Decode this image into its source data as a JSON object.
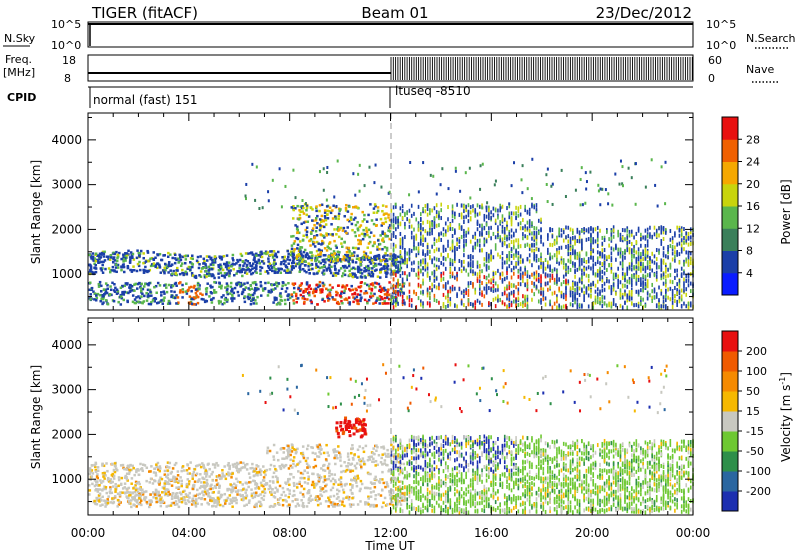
{
  "header": {
    "station": "TIGER (fitACF)",
    "beam": "Beam 01",
    "date": "23/Dec/2012"
  },
  "panels": {
    "nsky": {
      "left_label": "N.Sky",
      "right_label": "N.Search",
      "left_ticks": [
        "10^5",
        "10^0"
      ],
      "right_ticks": [
        "10^5",
        "10^0"
      ]
    },
    "freq": {
      "left_label_line1": "Freq.",
      "left_label_line2": "[MHz]",
      "right_label": "Nave",
      "left_ticks": [
        "18",
        "8"
      ],
      "right_ticks": [
        "60",
        "0"
      ]
    },
    "cpid": {
      "label": "CPID",
      "segments": [
        {
          "name": "normal (fast) 151",
          "start_h": 0
        },
        {
          "name": "ltuseq -8510",
          "start_h": 12
        }
      ]
    }
  },
  "chart_data": [
    {
      "type": "heatmap",
      "name": "power",
      "ylabel": "Slant Range [km]",
      "yticks": [
        "1000",
        "2000",
        "3000",
        "4000"
      ],
      "ylim": [
        200,
        4600
      ],
      "colorbar_label": "Power [dB]",
      "colorbar_ticks": [
        "4",
        "8",
        "12",
        "16",
        "20",
        "24",
        "28"
      ],
      "colorbar_colors": [
        "#0a1cff",
        "#1b3fa8",
        "#3a7f5a",
        "#5ab64c",
        "#c8d40c",
        "#f5a800",
        "#f06000",
        "#e81010"
      ]
    },
    {
      "type": "heatmap",
      "name": "velocity",
      "ylabel": "Slant Range [km]",
      "yticks": [
        "1000",
        "2000",
        "3000",
        "4000"
      ],
      "ylim": [
        200,
        4600
      ],
      "xlabel": "Time UT",
      "xticks": [
        "00:00",
        "04:00",
        "08:00",
        "12:00",
        "16:00",
        "20:00",
        "00:00"
      ],
      "colorbar_label": "Velocity [m s",
      "colorbar_label_sup": "-1",
      "colorbar_label_end": "]",
      "colorbar_ticks": [
        "200",
        "100",
        "50",
        "15",
        "-15",
        "-50",
        "-100",
        "-200"
      ],
      "colorbar_colors": [
        "#1c2fb0",
        "#2a66a0",
        "#2e8f4a",
        "#6ec832",
        "#c8c8c0",
        "#f5b800",
        "#f58a00",
        "#f05a00",
        "#e81010"
      ]
    }
  ]
}
